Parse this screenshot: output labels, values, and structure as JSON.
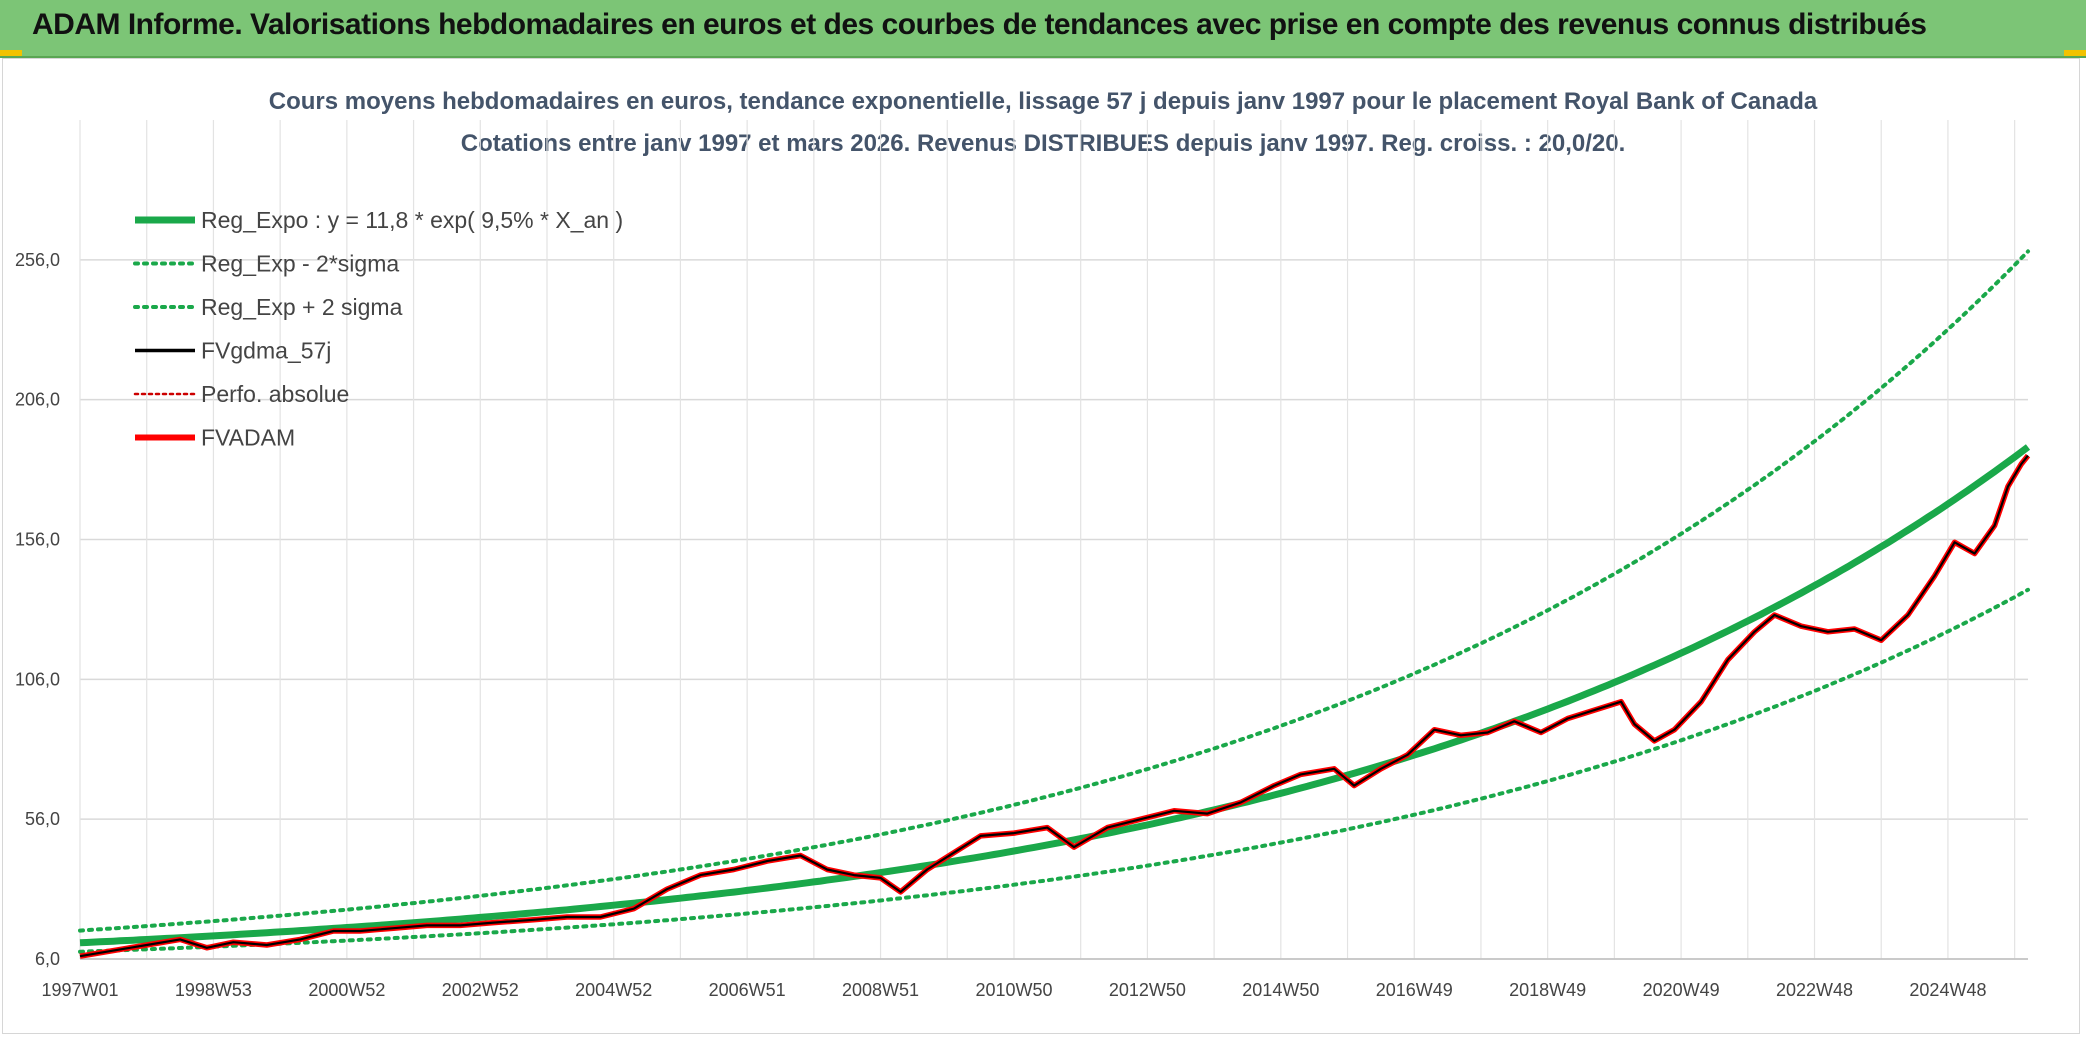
{
  "banner": {
    "title": "ADAM Informe. Valorisations hebdomadaires en euros et des courbes de tendances avec prise en compte des revenus connus distribués"
  },
  "colors": {
    "banner_bg": "#7cc576",
    "trend_green": "#1aa84a",
    "gdma_black": "#000000",
    "adam_red": "#ff0000",
    "perfo_red": "#cc0000",
    "grid": "#d9d9d9",
    "title_text": "#44546a"
  },
  "chart_data": {
    "type": "line",
    "title": [
      "Cours moyens hebdomadaires en euros, tendance exponentielle, lissage 57 j depuis janv 1997 pour le placement Royal Bank of Canada",
      "Cotations entre janv 1997 et mars 2026. Revenus DISTRIBUES depuis janv 1997. Reg. croiss. : 20,0/20."
    ],
    "xlabel": "",
    "ylabel": "",
    "x_range": [
      1997.0,
      2026.2
    ],
    "ylim": [
      6,
      306
    ],
    "y_ticks": [
      6,
      56,
      106,
      156,
      206,
      256
    ],
    "y_tick_labels": [
      "6,0",
      "56,0",
      "106,0",
      "156,0",
      "206,0",
      "256,0"
    ],
    "x_ticks": [
      {
        "label": "1997W01",
        "x": 1997.0
      },
      {
        "label": "1998W53",
        "x": 1999.0
      },
      {
        "label": "2000W52",
        "x": 2001.0
      },
      {
        "label": "2002W52",
        "x": 2003.0
      },
      {
        "label": "2004W52",
        "x": 2005.0
      },
      {
        "label": "2006W51",
        "x": 2007.0
      },
      {
        "label": "2008W51",
        "x": 2009.0
      },
      {
        "label": "2010W50",
        "x": 2011.0
      },
      {
        "label": "2012W50",
        "x": 2013.0
      },
      {
        "label": "2014W50",
        "x": 2015.0
      },
      {
        "label": "2016W49",
        "x": 2017.0
      },
      {
        "label": "2018W49",
        "x": 2019.0
      },
      {
        "label": "2020W49",
        "x": 2021.0
      },
      {
        "label": "2022W48",
        "x": 2023.0
      },
      {
        "label": "2024W48",
        "x": 2025.0
      }
    ],
    "legend_position": "top-left",
    "grid": true,
    "regression": {
      "a": 11.8,
      "rate": 0.095,
      "x0": 1997.0,
      "x_end": 2026.2,
      "sigma_factor_low": 0.73,
      "sigma_factor_high": 1.37
    },
    "series": [
      {
        "name": "Reg_Expo : y = 11,8 * exp( 9,5% *  X_an )",
        "style": "solid-thick",
        "color": "#1aa84a"
      },
      {
        "name": "Reg_Exp - 2*sigma",
        "style": "dotted",
        "color": "#1aa84a"
      },
      {
        "name": "Reg_Exp + 2 sigma",
        "style": "dotted",
        "color": "#1aa84a"
      },
      {
        "name": "FVgdma_57j",
        "style": "solid",
        "color": "#000000",
        "points": [
          [
            1997.0,
            7
          ],
          [
            1997.5,
            9
          ],
          [
            1998.0,
            11
          ],
          [
            1998.5,
            13
          ],
          [
            1998.9,
            10
          ],
          [
            1999.3,
            12
          ],
          [
            1999.8,
            11
          ],
          [
            2000.3,
            13
          ],
          [
            2000.8,
            16
          ],
          [
            2001.2,
            16
          ],
          [
            2001.7,
            17
          ],
          [
            2002.2,
            18
          ],
          [
            2002.7,
            18
          ],
          [
            2003.2,
            19
          ],
          [
            2003.8,
            20
          ],
          [
            2004.3,
            21
          ],
          [
            2004.8,
            21
          ],
          [
            2005.3,
            24
          ],
          [
            2005.8,
            31
          ],
          [
            2006.3,
            36
          ],
          [
            2006.8,
            38
          ],
          [
            2007.3,
            41
          ],
          [
            2007.8,
            43
          ],
          [
            2008.2,
            38
          ],
          [
            2008.6,
            36
          ],
          [
            2009.0,
            35
          ],
          [
            2009.3,
            30
          ],
          [
            2009.7,
            38
          ],
          [
            2010.1,
            44
          ],
          [
            2010.5,
            50
          ],
          [
            2011.0,
            51
          ],
          [
            2011.5,
            53
          ],
          [
            2011.9,
            46
          ],
          [
            2012.4,
            53
          ],
          [
            2012.9,
            56
          ],
          [
            2013.4,
            59
          ],
          [
            2013.9,
            58
          ],
          [
            2014.4,
            62
          ],
          [
            2014.9,
            68
          ],
          [
            2015.3,
            72
          ],
          [
            2015.8,
            74
          ],
          [
            2016.1,
            68
          ],
          [
            2016.5,
            74
          ],
          [
            2016.9,
            79
          ],
          [
            2017.3,
            88
          ],
          [
            2017.7,
            86
          ],
          [
            2018.1,
            87
          ],
          [
            2018.5,
            91
          ],
          [
            2018.9,
            87
          ],
          [
            2019.3,
            92
          ],
          [
            2019.7,
            95
          ],
          [
            2020.1,
            98
          ],
          [
            2020.3,
            90
          ],
          [
            2020.6,
            84
          ],
          [
            2020.9,
            88
          ],
          [
            2021.3,
            98
          ],
          [
            2021.7,
            113
          ],
          [
            2022.1,
            123
          ],
          [
            2022.4,
            129
          ],
          [
            2022.8,
            125
          ],
          [
            2023.2,
            123
          ],
          [
            2023.6,
            124
          ],
          [
            2024.0,
            120
          ],
          [
            2024.4,
            129
          ],
          [
            2024.8,
            143
          ],
          [
            2025.1,
            155
          ],
          [
            2025.4,
            151
          ],
          [
            2025.7,
            161
          ],
          [
            2025.9,
            175
          ],
          [
            2026.1,
            183
          ],
          [
            2026.2,
            186
          ]
        ]
      },
      {
        "name": "Perfo. absolue",
        "style": "dotted",
        "color": "#cc0000"
      },
      {
        "name": "FVADAM",
        "style": "solid-thick",
        "color": "#ff0000",
        "points": [
          [
            1997.0,
            7
          ],
          [
            1997.5,
            9
          ],
          [
            1998.0,
            11
          ],
          [
            1998.5,
            13
          ],
          [
            1998.9,
            10
          ],
          [
            1999.3,
            12
          ],
          [
            1999.8,
            11
          ],
          [
            2000.3,
            13
          ],
          [
            2000.8,
            16
          ],
          [
            2001.2,
            16
          ],
          [
            2001.7,
            17
          ],
          [
            2002.2,
            18
          ],
          [
            2002.7,
            18
          ],
          [
            2003.2,
            19
          ],
          [
            2003.8,
            20
          ],
          [
            2004.3,
            21
          ],
          [
            2004.8,
            21
          ],
          [
            2005.3,
            24
          ],
          [
            2005.8,
            31
          ],
          [
            2006.3,
            36
          ],
          [
            2006.8,
            38
          ],
          [
            2007.3,
            41
          ],
          [
            2007.8,
            43
          ],
          [
            2008.2,
            38
          ],
          [
            2008.6,
            36
          ],
          [
            2009.0,
            35
          ],
          [
            2009.3,
            30
          ],
          [
            2009.7,
            38
          ],
          [
            2010.1,
            44
          ],
          [
            2010.5,
            50
          ],
          [
            2011.0,
            51
          ],
          [
            2011.5,
            53
          ],
          [
            2011.9,
            46
          ],
          [
            2012.4,
            53
          ],
          [
            2012.9,
            56
          ],
          [
            2013.4,
            59
          ],
          [
            2013.9,
            58
          ],
          [
            2014.4,
            62
          ],
          [
            2014.9,
            68
          ],
          [
            2015.3,
            72
          ],
          [
            2015.8,
            74
          ],
          [
            2016.1,
            68
          ],
          [
            2016.5,
            74
          ],
          [
            2016.9,
            79
          ],
          [
            2017.3,
            88
          ],
          [
            2017.7,
            86
          ],
          [
            2018.1,
            87
          ],
          [
            2018.5,
            91
          ],
          [
            2018.9,
            87
          ],
          [
            2019.3,
            92
          ],
          [
            2019.7,
            95
          ],
          [
            2020.1,
            98
          ],
          [
            2020.3,
            90
          ],
          [
            2020.6,
            84
          ],
          [
            2020.9,
            88
          ],
          [
            2021.3,
            98
          ],
          [
            2021.7,
            113
          ],
          [
            2022.1,
            123
          ],
          [
            2022.4,
            129
          ],
          [
            2022.8,
            125
          ],
          [
            2023.2,
            123
          ],
          [
            2023.6,
            124
          ],
          [
            2024.0,
            120
          ],
          [
            2024.4,
            129
          ],
          [
            2024.8,
            143
          ],
          [
            2025.1,
            155
          ],
          [
            2025.4,
            151
          ],
          [
            2025.7,
            161
          ],
          [
            2025.9,
            175
          ],
          [
            2026.1,
            183
          ],
          [
            2026.2,
            186
          ]
        ]
      }
    ]
  }
}
